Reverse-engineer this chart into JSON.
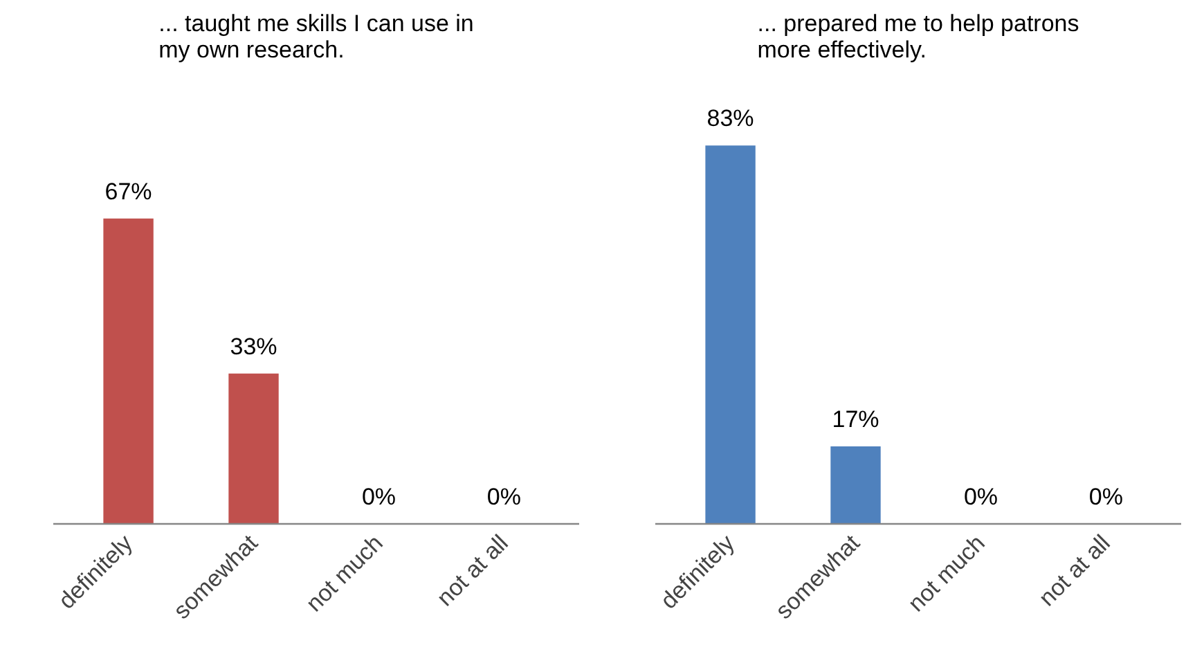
{
  "chart_data": [
    {
      "type": "bar",
      "title": "... taught me skills I can use in my own research.",
      "categories": [
        "definitely",
        "somewhat",
        "not much",
        "not at all"
      ],
      "values": [
        67,
        33,
        0,
        0
      ],
      "color": "#c0504d",
      "value_labels": [
        "67%",
        "33%",
        "0%",
        "0%"
      ]
    },
    {
      "type": "bar",
      "title": "... prepared me to help patrons more effectively.",
      "categories": [
        "definitely",
        "somewhat",
        "not much",
        "not at all"
      ],
      "values": [
        83,
        17,
        0,
        0
      ],
      "color": "#4f81bd",
      "value_labels": [
        "83%",
        "17%",
        "0%",
        "0%"
      ]
    }
  ]
}
